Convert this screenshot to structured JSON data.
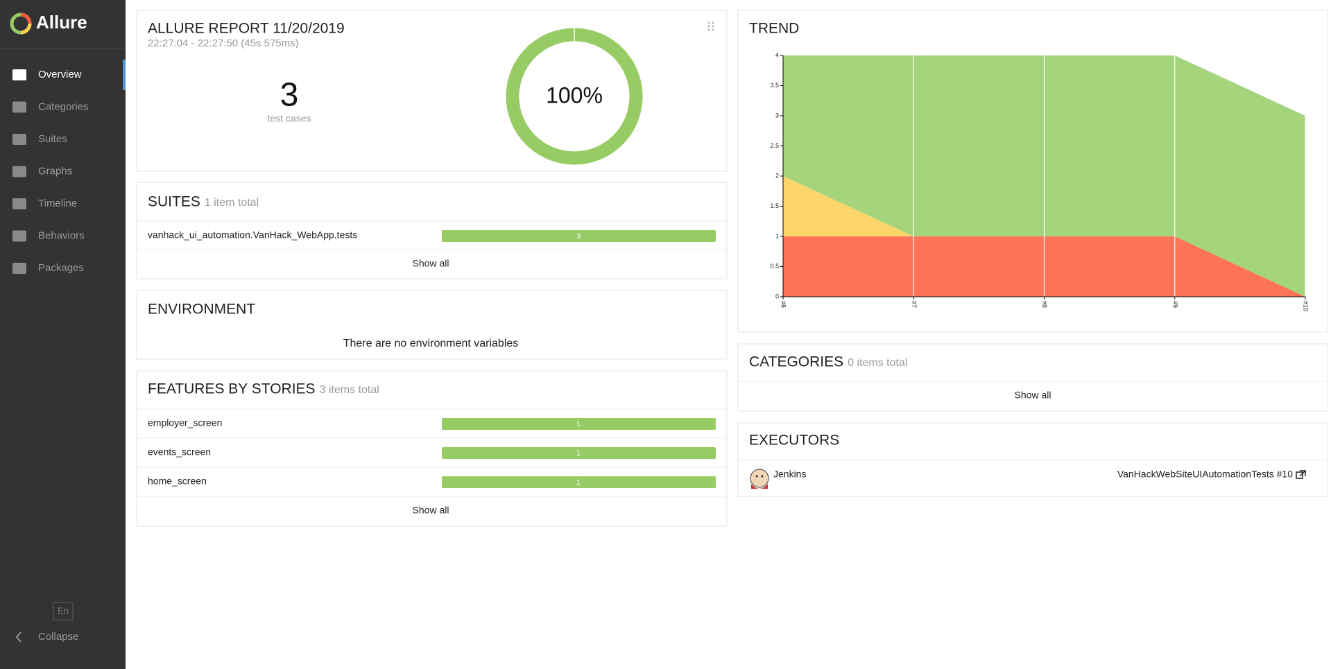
{
  "sidebar": {
    "brand": "Allure",
    "nav": [
      "Overview",
      "Categories",
      "Suites",
      "Graphs",
      "Timeline",
      "Behaviors",
      "Packages"
    ],
    "language": "En",
    "collapse": "Collapse"
  },
  "summary": {
    "title": "ALLURE REPORT 11/20/2019",
    "time": "22:27:04 - 22:27:50 (45s 575ms)",
    "test_cases": 3,
    "test_cases_label": "test cases",
    "donut": {
      "values": [
        100
      ],
      "value_labels": [
        "100%"
      ],
      "color": "#97cc64"
    }
  },
  "suites": {
    "title": "SUITES",
    "count_label": "1 item total",
    "rows": [
      {
        "name": "vanhack_ui_automation.VanHack_WebApp.tests",
        "passed": 3
      }
    ],
    "show_all": "Show all"
  },
  "environment": {
    "title": "ENVIRONMENT",
    "message": "There are no environment variables"
  },
  "features": {
    "title": "FEATURES BY STORIES",
    "count_label": "3 items total",
    "rows": [
      {
        "name": "employer_screen",
        "passed": 1
      },
      {
        "name": "events_screen",
        "passed": 1
      },
      {
        "name": "home_screen",
        "passed": 1
      }
    ],
    "show_all": "Show all"
  },
  "chart_data": {
    "type": "area",
    "title": "TREND",
    "categories": [
      "#6",
      "#7",
      "#8",
      "#9",
      "#10"
    ],
    "series": [
      {
        "color": "#fe735a",
        "values": [
          1,
          1,
          1,
          1,
          0
        ]
      },
      {
        "color": "#fdd56a",
        "values": [
          1,
          0,
          0,
          0,
          0
        ]
      },
      {
        "color": "#a4d47c",
        "values": [
          2,
          3,
          3,
          3,
          3
        ]
      }
    ],
    "ylim": [
      0,
      4
    ],
    "yticks": [
      0,
      0.5,
      1,
      1.5,
      2,
      2.5,
      3,
      3.5,
      4
    ],
    "grid": true
  },
  "categories_widget": {
    "title": "CATEGORIES",
    "count_label": "0 items total",
    "show_all": "Show all"
  },
  "executors": {
    "title": "EXECUTORS",
    "rows": [
      {
        "name": "Jenkins",
        "build": "VanHackWebSiteUIAutomationTests #10"
      }
    ]
  }
}
